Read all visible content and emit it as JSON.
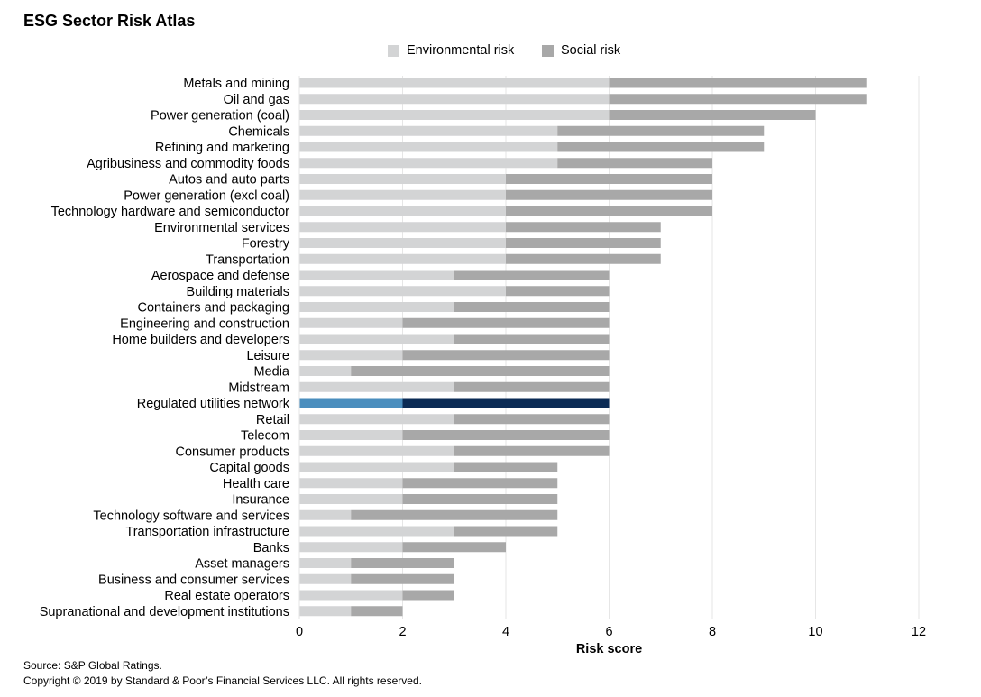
{
  "title": "ESG Sector Risk Atlas",
  "legend": {
    "environmental": "Environmental risk",
    "social": "Social risk"
  },
  "colors": {
    "environmental": "#d3d4d5",
    "social": "#a8a8a8",
    "highlight_environmental": "#4a8ebe",
    "highlight_social": "#0b2b55",
    "grid": "#e6e6e6"
  },
  "footer": {
    "source": "Source: S&P Global Ratings.",
    "copyright": "Copyright © 2019 by Standard & Poor’s Financial Services LLC. All rights reserved."
  },
  "chart_data": {
    "type": "bar",
    "orientation": "horizontal",
    "stacked": true,
    "title": "ESG Sector Risk Atlas",
    "xlabel": "Risk score",
    "ylabel": "",
    "xlim": [
      0,
      12
    ],
    "xticks": [
      0,
      2,
      4,
      6,
      8,
      10,
      12
    ],
    "grid": true,
    "legend_position": "top-center",
    "highlight_category": "Regulated utilities network",
    "categories": [
      "Metals and mining",
      "Oil and gas",
      "Power generation (coal)",
      "Chemicals",
      "Refining and marketing",
      "Agribusiness and commodity foods",
      "Autos and auto parts",
      "Power generation (excl coal)",
      "Technology hardware and semiconductor",
      "Environmental services",
      "Forestry",
      "Transportation",
      "Aerospace and defense",
      "Building materials",
      "Containers and packaging",
      "Engineering and construction",
      "Home builders and developers",
      "Leisure",
      "Media",
      "Midstream",
      "Regulated utilities network",
      "Retail",
      "Telecom",
      "Consumer products",
      "Capital goods",
      "Health care",
      "Insurance",
      "Technology software and services",
      "Transportation infrastructure",
      "Banks",
      "Asset managers",
      "Business and consumer services",
      "Real estate operators",
      "Supranational and development institutions"
    ],
    "series": [
      {
        "name": "Environmental risk",
        "values": [
          6,
          6,
          6,
          5,
          5,
          5,
          4,
          4,
          4,
          4,
          4,
          4,
          3,
          4,
          3,
          2,
          3,
          2,
          1,
          3,
          2,
          3,
          2,
          3,
          3,
          2,
          2,
          1,
          3,
          2,
          1,
          1,
          2,
          1
        ]
      },
      {
        "name": "Social risk",
        "values": [
          5,
          5,
          4,
          4,
          4,
          3,
          4,
          4,
          4,
          3,
          3,
          3,
          3,
          2,
          3,
          4,
          3,
          4,
          5,
          3,
          4,
          3,
          4,
          3,
          2,
          3,
          3,
          4,
          2,
          2,
          2,
          2,
          1,
          1
        ]
      }
    ]
  }
}
